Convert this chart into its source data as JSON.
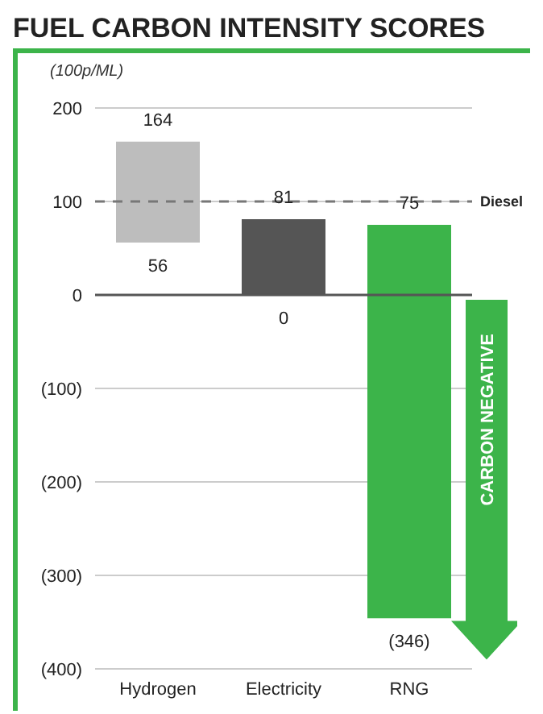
{
  "chart_data": {
    "type": "bar",
    "title": "FUEL CARBON INTENSITY SCORES",
    "ylabel": "(100p/ML)",
    "categories": [
      "Hydrogen",
      "Electricity",
      "RNG"
    ],
    "values": [
      108,
      81,
      421
    ],
    "base": [
      56,
      0,
      -346
    ],
    "colors": [
      "#bdbdbd",
      "#555555",
      "#3cb44a"
    ],
    "ylim": [
      -400,
      200
    ],
    "yticks": [
      200,
      100,
      0,
      {
        "value": -100,
        "label": "(100)"
      },
      {
        "value": -200,
        "label": "(200)"
      },
      {
        "value": -300,
        "label": "(300)"
      },
      {
        "value": -400,
        "label": "(400)"
      }
    ],
    "grid": "y",
    "ref_lines": [
      {
        "axis": "y",
        "value": 100,
        "label": "Diesel",
        "color": "#777777",
        "line_style": "dashed"
      },
      {
        "axis": "y",
        "value": 0,
        "color": "#555555",
        "line_style": "solid"
      }
    ],
    "annotations": [
      {
        "text": "164",
        "x": "Hydrogen",
        "y": 164
      },
      {
        "text": "56",
        "x": "Hydrogen",
        "y": 56
      },
      {
        "text": "81",
        "x": "Electricity",
        "y": 81
      },
      {
        "text": "0",
        "x": "Electricity",
        "y": 0
      },
      {
        "text": "75",
        "x": "RNG",
        "y": 75
      },
      {
        "text": "(346)",
        "x": "RNG",
        "y": -346
      },
      "CARBON NEGATIVE"
    ]
  }
}
